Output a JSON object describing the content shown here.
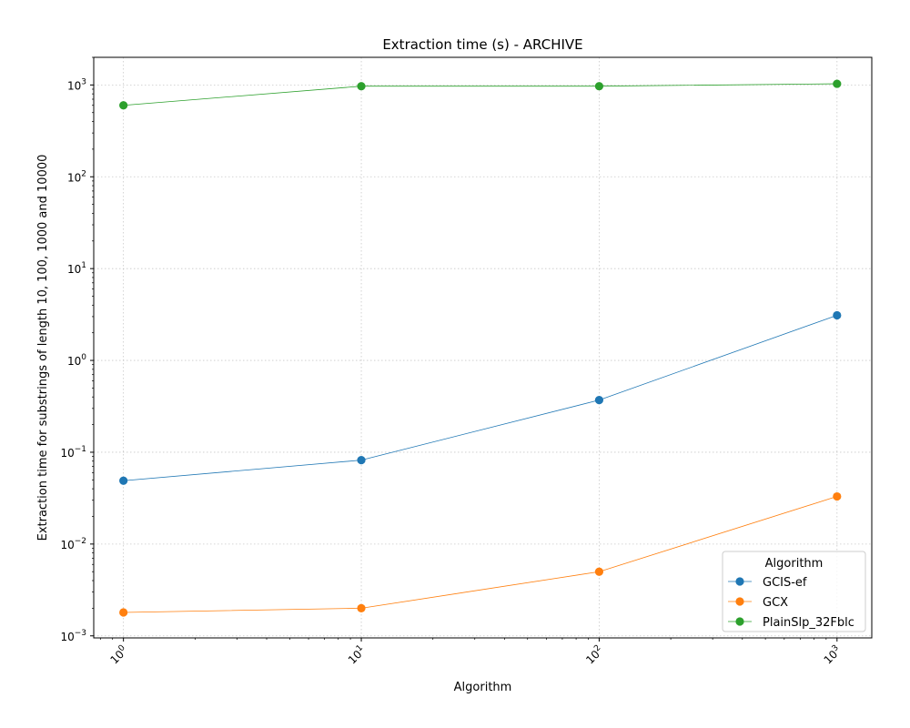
{
  "chart_data": {
    "type": "line",
    "title": "Extraction time (s) - ARCHIVE",
    "xlabel": "Algorithm",
    "ylabel": "Extraction time for substrings of length 10, 100, 1000 and 10000",
    "x_scale": "log",
    "y_scale": "log",
    "x": [
      1,
      10,
      100,
      1000
    ],
    "xlim": [
      0.75,
      1400
    ],
    "ylim": [
      0.00095,
      2000
    ],
    "grid": true,
    "x_tick_labels": [
      {
        "value": 1,
        "base": "10",
        "exp": "0"
      },
      {
        "value": 10,
        "base": "10",
        "exp": "1"
      },
      {
        "value": 100,
        "base": "10",
        "exp": "2"
      },
      {
        "value": 1000,
        "base": "10",
        "exp": "3"
      }
    ],
    "y_tick_labels": [
      {
        "value": 0.001,
        "base": "10",
        "exp": "−3"
      },
      {
        "value": 0.01,
        "base": "10",
        "exp": "−2"
      },
      {
        "value": 0.1,
        "base": "10",
        "exp": "−1"
      },
      {
        "value": 1,
        "base": "10",
        "exp": "0"
      },
      {
        "value": 10,
        "base": "10",
        "exp": "1"
      },
      {
        "value": 100,
        "base": "10",
        "exp": "2"
      },
      {
        "value": 1000,
        "base": "10",
        "exp": "3"
      }
    ],
    "legend": {
      "title": "Algorithm",
      "position": "lower-right"
    },
    "series": [
      {
        "name": "GCIS-ef",
        "color": "#1f77b4",
        "values": [
          0.049,
          0.082,
          0.37,
          3.1
        ]
      },
      {
        "name": "GCX",
        "color": "#ff7f0e",
        "values": [
          0.0018,
          0.002,
          0.005,
          0.033
        ]
      },
      {
        "name": "PlainSlp_32Fblc",
        "color": "#2ca02c",
        "values": [
          600,
          970,
          970,
          1030
        ]
      }
    ]
  }
}
